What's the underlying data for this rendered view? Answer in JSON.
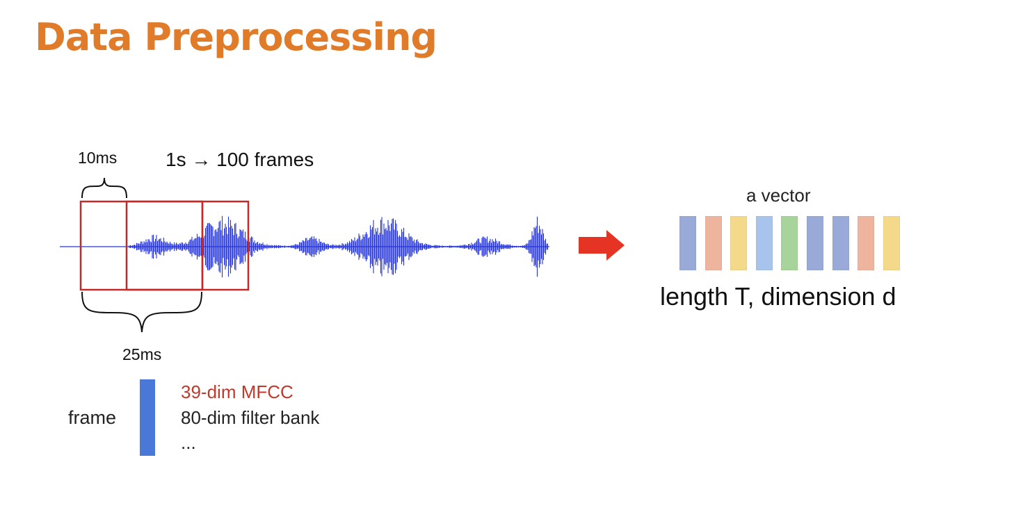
{
  "title": "Data Preprocessing",
  "labels": {
    "stride": "10ms",
    "rate": "1s → 100 frames",
    "window": "25ms",
    "vector": "a vector",
    "length_dim": "length T, dimension d",
    "frame": "frame",
    "feature_mfcc": "39-dim MFCC",
    "feature_fbank": "80-dim filter bank",
    "feature_more": "..."
  },
  "colors": {
    "title": "#e07b2a",
    "waveform": "#2233dd",
    "window_box": "#c62828",
    "arrow": "#e53324",
    "frame_bar": "#4a78d8",
    "mfcc_text": "#c0392b"
  },
  "vector_cells": [
    {
      "name": "blue",
      "color": "#9aaad8"
    },
    {
      "name": "orange",
      "color": "#eeb49e"
    },
    {
      "name": "yellow",
      "color": "#f4d98a"
    },
    {
      "name": "lightblue",
      "color": "#a8c4ec"
    },
    {
      "name": "green",
      "color": "#a6d49a"
    },
    {
      "name": "blue",
      "color": "#9aaad8"
    },
    {
      "name": "blue",
      "color": "#9aaad8"
    },
    {
      "name": "orange",
      "color": "#eeb49e"
    },
    {
      "name": "yellow",
      "color": "#f4d98a"
    }
  ]
}
